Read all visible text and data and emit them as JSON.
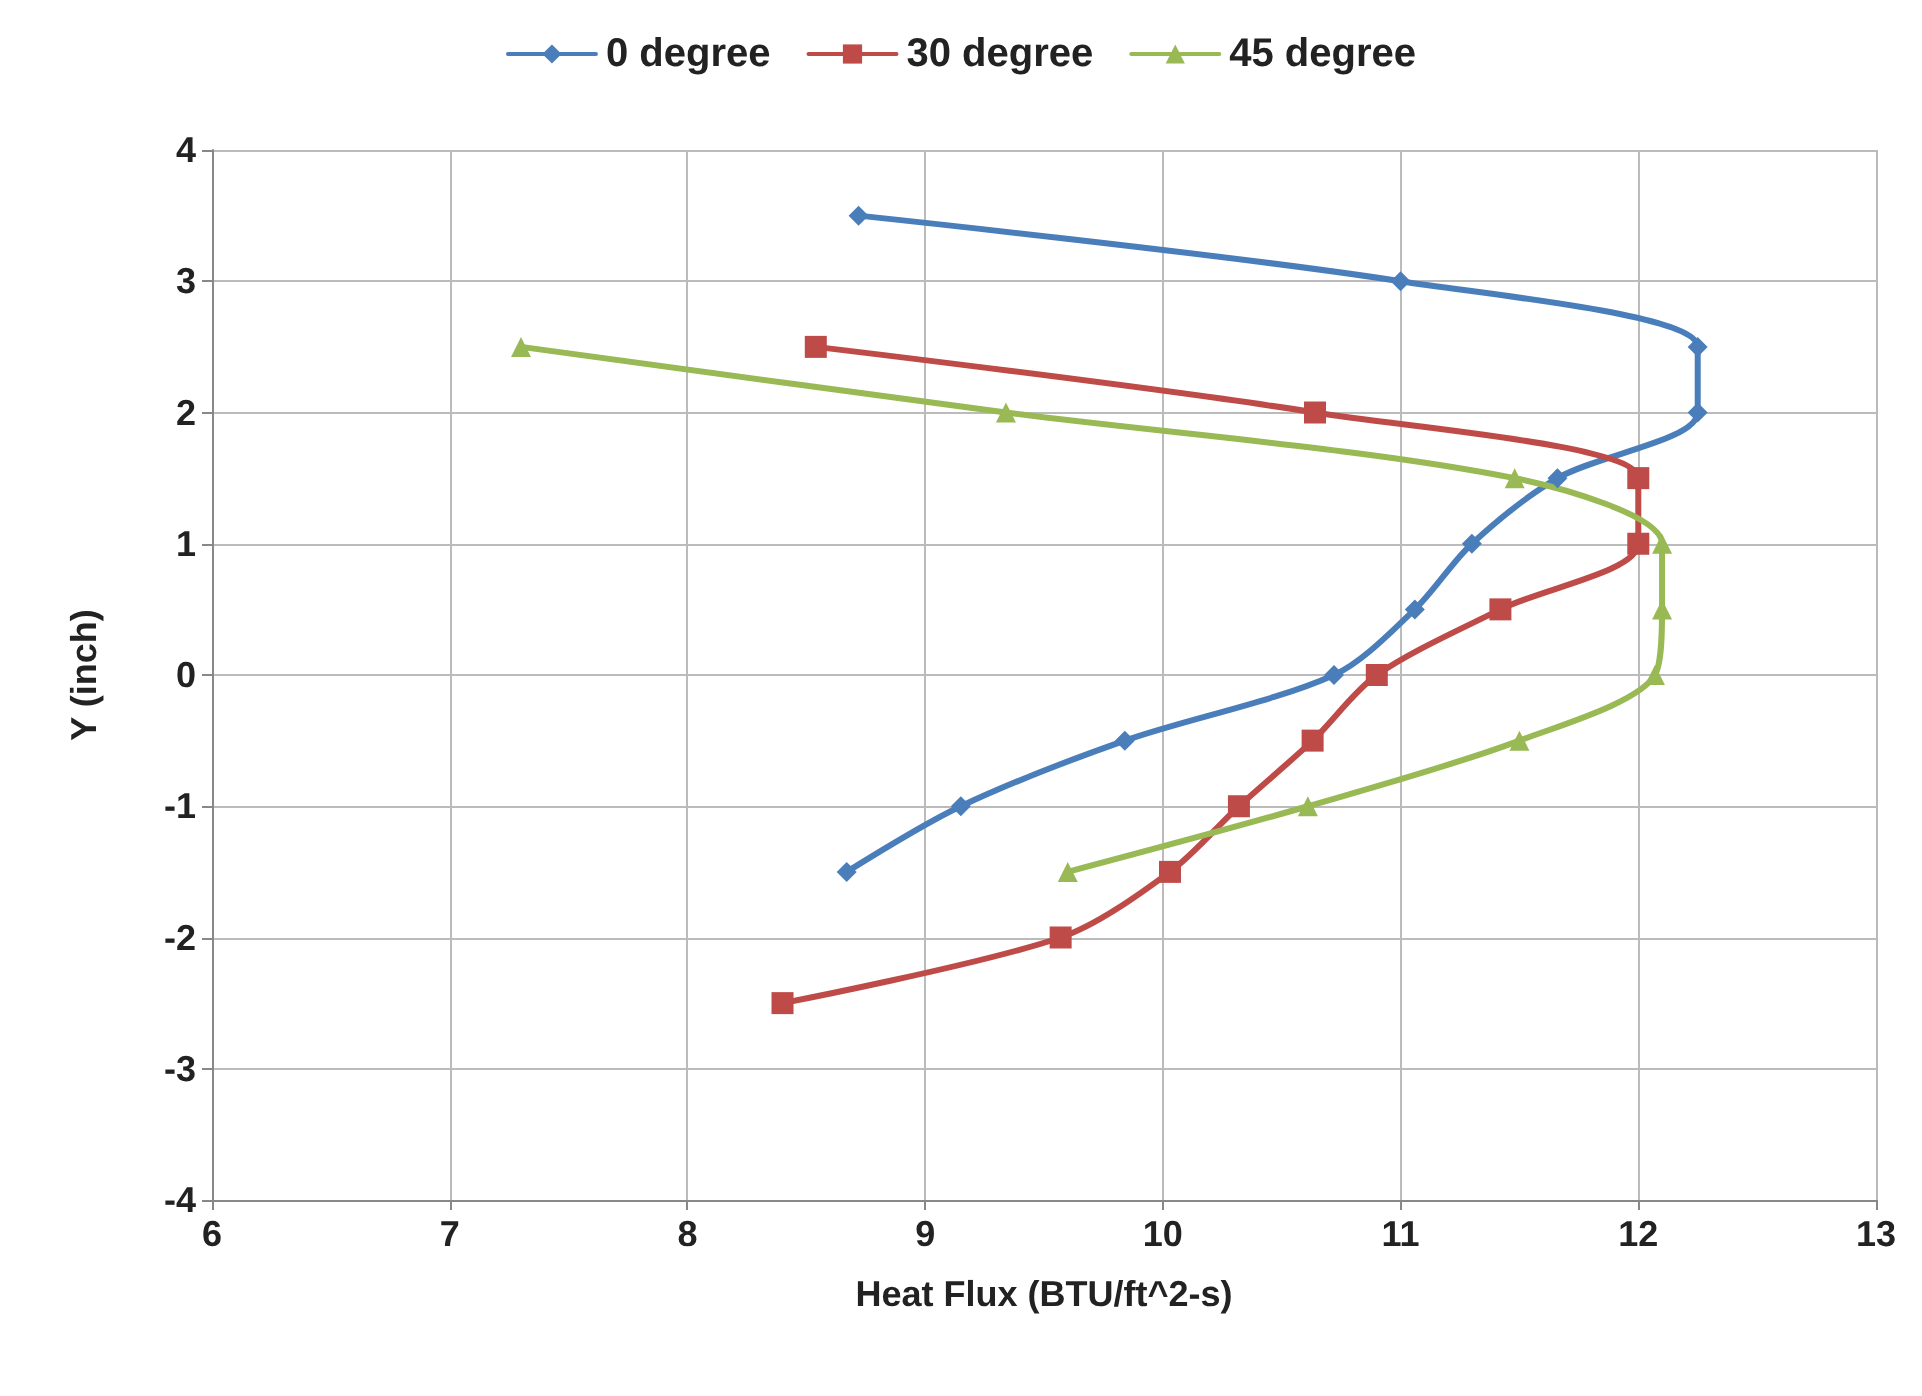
{
  "chart_data": {
    "type": "line",
    "xlabel": "Heat Flux (BTU/ft^2-s)",
    "ylabel": "Y (inch)",
    "xlim": [
      6,
      13
    ],
    "xticks": [
      6,
      7,
      8,
      9,
      10,
      11,
      12,
      13
    ],
    "ylim": [
      -4,
      4
    ],
    "yticks": [
      -4,
      -3,
      -2,
      -1,
      0,
      1,
      2,
      3,
      4
    ],
    "grid": true,
    "legend": "top",
    "line_style": "solid",
    "series": [
      {
        "name": "0 degree",
        "color": "#4a7ebb",
        "marker": "diamond",
        "x": [
          8.72,
          11.0,
          12.25,
          12.25,
          11.66,
          11.3,
          11.06,
          10.72,
          9.84,
          9.15,
          8.67
        ],
        "values": [
          3.5,
          3.0,
          2.5,
          2.0,
          1.5,
          1.0,
          0.5,
          0,
          -0.5,
          -1,
          -1.5
        ]
      },
      {
        "name": "30 degree",
        "color": "#be4b48",
        "marker": "square",
        "x": [
          8.54,
          10.64,
          12.0,
          12.0,
          11.42,
          10.9,
          10.63,
          10.32,
          10.03,
          9.57,
          8.4
        ],
        "values": [
          2.5,
          2.0,
          1.5,
          1.0,
          0.5,
          0,
          -0.5,
          -1,
          -1.5,
          -2,
          -2.5
        ]
      },
      {
        "name": "45 degree",
        "color": "#98b954",
        "marker": "triangle",
        "x": [
          7.3,
          9.34,
          11.48,
          12.1,
          12.1,
          12.07,
          11.5,
          10.61,
          9.6
        ],
        "values": [
          2.5,
          2.0,
          1.5,
          1.0,
          0.5,
          0,
          -0.5,
          -1,
          -1.5
        ]
      }
    ]
  }
}
